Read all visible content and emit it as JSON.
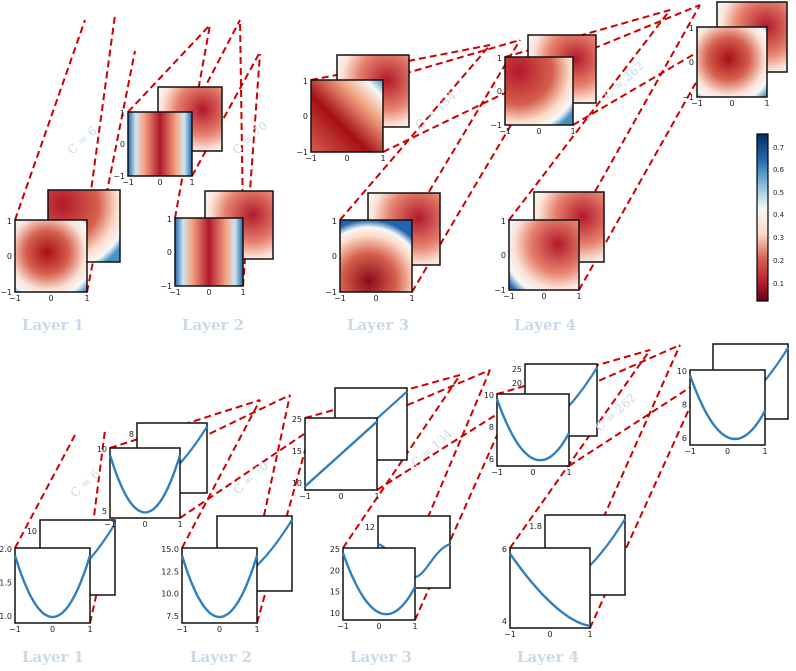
{
  "colors": {
    "connector": "#cc0000",
    "curve": "#2f7fbf",
    "label": "#c9daea",
    "cmap_low": "#67001f",
    "cmap_mid": "#f7f7f7",
    "cmap_high": "#053061"
  },
  "layer_labels_top": [
    "Layer 1",
    "Layer 2",
    "Layer 3",
    "Layer 4"
  ],
  "layer_labels_bottom": [
    "Layer 1",
    "Layer 2",
    "Layer 3",
    "Layer 4"
  ],
  "c_labels_top": [
    "C = 6",
    "C = 70",
    "C = 134",
    "C = 262"
  ],
  "c_labels_bottom": [
    "C = 6",
    "C = 70",
    "C = 134",
    "C = 262"
  ],
  "colorbar_ticks": [
    "0.7",
    "0.6",
    "0.5",
    "0.4",
    "0.3",
    "0.2",
    "0.1"
  ],
  "tick_labels": {
    "m1": "−1",
    "zero": "0",
    "one": "1",
    "b1": [
      "2.0",
      "1.5",
      "1.0"
    ],
    "b1_back": "10",
    "b2": [
      "15.0",
      "12.5",
      "10.0",
      "7.5"
    ],
    "b3": [
      "25",
      "20",
      "15",
      "10"
    ],
    "b3_back": "12",
    "b4": [
      "6",
      "4"
    ],
    "b4_back": "1.8",
    "b5": [
      "10",
      "5"
    ],
    "b5_back": "8",
    "b6": [
      "25",
      "15",
      "10"
    ],
    "b7": [
      "10",
      "8",
      "6"
    ],
    "b7_back": [
      "25",
      "20"
    ],
    "b8": [
      "10",
      "8",
      "6"
    ]
  }
}
